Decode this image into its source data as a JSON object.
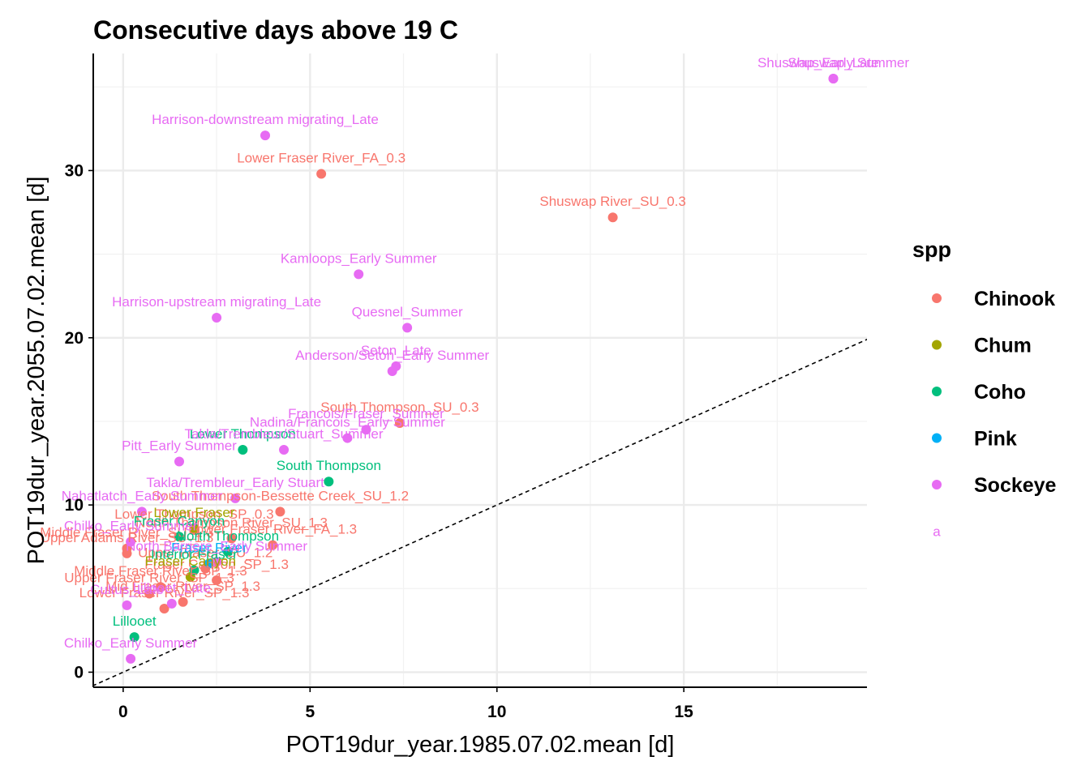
{
  "chart_data": {
    "type": "scatter",
    "title": "Consecutive days above 19 C",
    "xlabel": "POT19dur_year.1985.07.02.mean [d]",
    "ylabel": "POT19dur_year.2055.07.02.mean [d]",
    "xlim": [
      -0.8,
      19.9
    ],
    "ylim": [
      -0.9,
      37.0
    ],
    "xticks": [
      0,
      5,
      10,
      15
    ],
    "yticks": [
      0,
      10,
      20,
      30
    ],
    "grid": true,
    "reference_line": {
      "type": "1:1 line",
      "style": "dashed"
    },
    "legend": {
      "title": "spp",
      "position": "right",
      "entries": [
        "Chinook",
        "Chum",
        "Coho",
        "Pink",
        "Sockeye"
      ],
      "label_key": "a"
    },
    "series": [
      {
        "name": "Chinook",
        "color": "#F8766D",
        "points": [
          {
            "x": 5.3,
            "y": 29.8,
            "label": "Lower Fraser River_FA_0.3"
          },
          {
            "x": 13.1,
            "y": 27.2,
            "label": "Shuswap River_SU_0.3"
          },
          {
            "x": 7.4,
            "y": 14.9,
            "label": "South Thompson_SU_0.3"
          },
          {
            "x": 4.2,
            "y": 9.6,
            "label": "South Thompson-Bessette Creek_SU_1.2"
          },
          {
            "x": 2.9,
            "y": 8.0,
            "label": "North Thompson River_SU_1.3"
          },
          {
            "x": 1.9,
            "y": 8.5,
            "label": "Lower Thompson_SP_0.3"
          },
          {
            "x": 4.0,
            "y": 7.6,
            "label": "Lower Fraser River_FA_1.3"
          },
          {
            "x": 2.2,
            "y": 6.2,
            "label": "Upper Fraser_SU_1.2"
          },
          {
            "x": 0.1,
            "y": 7.4,
            "label": "Middle Fraser River_SU_1.3"
          },
          {
            "x": 0.1,
            "y": 7.1,
            "label": "Upper Adams River_SU_1.3"
          },
          {
            "x": 2.5,
            "y": 5.5,
            "label": "Fraser Canyon_SP_1.3"
          },
          {
            "x": 1.0,
            "y": 5.1,
            "label": "Middle Fraser River_SP_1.3"
          },
          {
            "x": 0.7,
            "y": 4.7,
            "label": "Upper Fraser River_SP_1.3"
          },
          {
            "x": 1.1,
            "y": 3.8,
            "label": "Lower Fraser River_SP_1.3"
          },
          {
            "x": 1.6,
            "y": 4.2,
            "label": "Mid Fraser River_SP_1.3"
          }
        ]
      },
      {
        "name": "Chum",
        "color": "#A3A500",
        "points": [
          {
            "x": 1.9,
            "y": 8.6,
            "label": "Lower Fraser"
          },
          {
            "x": 1.8,
            "y": 5.7,
            "label": "Fraser Canyon"
          }
        ]
      },
      {
        "name": "Coho",
        "color": "#00BF7D",
        "points": [
          {
            "x": 3.2,
            "y": 13.3,
            "label": "Lower Thompson"
          },
          {
            "x": 5.5,
            "y": 11.4,
            "label": "South Thompson"
          },
          {
            "x": 1.5,
            "y": 8.1,
            "label": "Fraser Canyon"
          },
          {
            "x": 2.8,
            "y": 7.2,
            "label": "North Thompson"
          },
          {
            "x": 1.9,
            "y": 6.1,
            "label": "Interior Fraser"
          },
          {
            "x": 0.3,
            "y": 2.1,
            "label": "Lillooet"
          }
        ]
      },
      {
        "name": "Pink",
        "color": "#00B0F6",
        "points": [
          {
            "x": 2.3,
            "y": 6.5,
            "label": "Fraser River"
          }
        ]
      },
      {
        "name": "Sockeye",
        "color": "#E76BF3",
        "points": [
          {
            "x": 19.0,
            "y": 35.5,
            "label": "Shuswap_Late"
          },
          {
            "x": 19.0,
            "y": 35.5,
            "label": "Shuswap_Early Summer"
          },
          {
            "x": 3.8,
            "y": 32.1,
            "label": "Harrison-downstream migrating_Late"
          },
          {
            "x": 6.3,
            "y": 23.8,
            "label": "Kamloops_Early Summer"
          },
          {
            "x": 2.5,
            "y": 21.2,
            "label": "Harrison-upstream migrating_Late"
          },
          {
            "x": 7.6,
            "y": 20.6,
            "label": "Quesnel_Summer"
          },
          {
            "x": 7.3,
            "y": 18.3,
            "label": "Seton_Late"
          },
          {
            "x": 7.2,
            "y": 18.0,
            "label": "Anderson/Seton_Early Summer"
          },
          {
            "x": 6.5,
            "y": 14.5,
            "label": "Francois/Fraser_Summer"
          },
          {
            "x": 6.0,
            "y": 14.0,
            "label": "Nadina/Francois_Early Summer"
          },
          {
            "x": 4.3,
            "y": 13.3,
            "label": "Takla/Trembleur/Stuart_Summer"
          },
          {
            "x": 1.5,
            "y": 12.6,
            "label": "Pitt_Early Summer"
          },
          {
            "x": 3.0,
            "y": 10.4,
            "label": "Takla/Trembleur_Early Stuart"
          },
          {
            "x": 0.5,
            "y": 9.6,
            "label": "Nahatlatch_Early Summer"
          },
          {
            "x": 0.2,
            "y": 7.8,
            "label": "Chilko_Early Summer"
          },
          {
            "x": 2.5,
            "y": 6.6,
            "label": "North Barriere_Early Summer"
          },
          {
            "x": 1.3,
            "y": 4.1,
            "label": "Lillooet_Late"
          },
          {
            "x": 0.1,
            "y": 4.0,
            "label": "Cultus_Late"
          },
          {
            "x": 0.2,
            "y": 0.8,
            "label": "Chilko_Early Summer"
          }
        ]
      }
    ]
  }
}
